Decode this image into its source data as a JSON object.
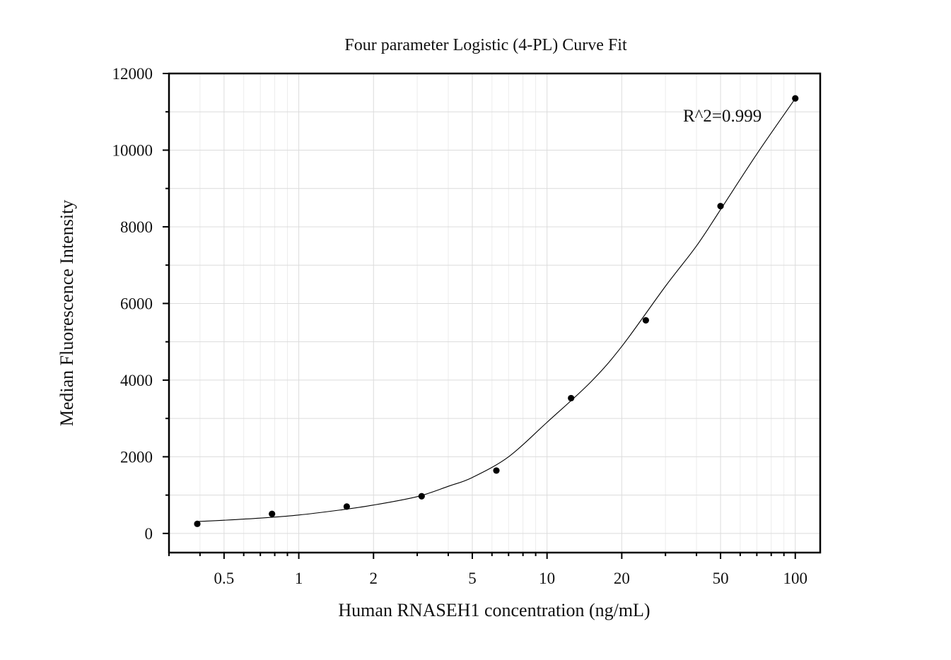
{
  "chart_data": {
    "type": "scatter",
    "title": "Four parameter Logistic (4-PL) Curve Fit",
    "xlabel": "Human RNASEH1 concentration (ng/mL)",
    "ylabel": "Median Fluorescence Intensity",
    "x_scale": "log",
    "xlim": [
      0.3,
      126
    ],
    "ylim": [
      -500,
      12000
    ],
    "x_ticks": [
      0.5,
      1,
      2,
      5,
      10,
      20,
      50,
      100
    ],
    "x_tick_labels": [
      "0.5",
      "1",
      "2",
      "5",
      "10",
      "20",
      "50",
      "100"
    ],
    "y_ticks": [
      0,
      2000,
      4000,
      6000,
      8000,
      10000,
      12000
    ],
    "y_tick_labels": [
      "0",
      "2000",
      "4000",
      "6000",
      "8000",
      "10000",
      "12000"
    ],
    "grid": true,
    "annotation": "R^2=0.999",
    "series": [
      {
        "x": [
          0.39,
          0.78,
          1.56,
          3.125,
          6.25,
          12.5,
          25,
          50,
          100
        ],
        "y": [
          250,
          510,
          700,
          970,
          1640,
          3530,
          5560,
          8540,
          11350
        ]
      }
    ],
    "fit_curve": {
      "x": [
        0.39,
        0.5,
        0.7,
        1,
        1.5,
        2,
        3,
        4,
        5,
        7,
        10,
        15,
        20,
        30,
        40,
        50,
        70,
        100
      ],
      "y": [
        310,
        345,
        400,
        480,
        620,
        740,
        960,
        1230,
        1460,
        2000,
        2900,
        3950,
        4880,
        6450,
        7500,
        8450,
        9900,
        11350
      ]
    }
  }
}
